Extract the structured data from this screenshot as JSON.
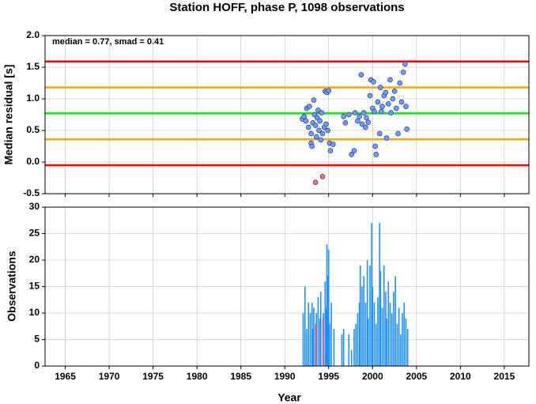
{
  "chart_data": [
    {
      "type": "scatter",
      "title": "Station HOFF, phase P, 1098 observations",
      "y_label": "Median residual [s]",
      "annotation": "median = 0.77, smad = 0.41",
      "xlim": [
        1962.7,
        2017.8
      ],
      "xticks": [
        1965,
        1970,
        1975,
        1980,
        1985,
        1990,
        1995,
        2000,
        2005,
        2010,
        2015
      ],
      "ylim": [
        -0.5,
        2.0
      ],
      "yticks": [
        -0.5,
        {
          "value": 0,
          "label": "0.0"
        },
        0.5,
        {
          "value": 1,
          "label": "1.0"
        },
        1.5,
        {
          "value": 2,
          "label": "2.0"
        }
      ],
      "grid": true,
      "reference_lines": [
        {
          "value": 1.59,
          "color": "#ff0000"
        },
        {
          "value": 1.18,
          "color": "#ffa500"
        },
        {
          "value": 0.77,
          "color": "#00ee00"
        },
        {
          "value": 0.36,
          "color": "#ffa500"
        },
        {
          "value": -0.05,
          "color": "#ff0000"
        }
      ],
      "series": [
        {
          "color": "#6f9cf0",
          "x": [
            1992.0,
            1992.2,
            1992.4,
            1992.5,
            1992.7,
            1992.8,
            1993.0,
            1993.0,
            1993.1,
            1993.2,
            1993.3,
            1993.4,
            1993.5,
            1993.6,
            1993.7,
            1993.8,
            1993.9,
            1994.0,
            1994.1,
            1994.2,
            1994.3,
            1994.5,
            1994.6,
            1994.7,
            1994.8,
            1994.9,
            1995.0,
            1995.1,
            1995.2,
            1995.5,
            1996.7,
            1996.9,
            1997.3,
            1997.6,
            1997.9,
            1998.0,
            1998.3,
            1998.5,
            1998.7,
            1998.8,
            1999.0,
            1999.2,
            1999.3,
            1999.5,
            1999.7,
            1999.8,
            2000.0,
            2000.1,
            2000.2,
            2000.3,
            2000.4,
            2000.6,
            2000.8,
            2000.9,
            2001.0,
            2001.1,
            2001.3,
            2001.5,
            2001.6,
            2001.8,
            2002.0,
            2002.1,
            2002.3,
            2002.5,
            2002.7,
            2002.9,
            2003.1,
            2003.3,
            2003.5,
            2003.7,
            2003.8,
            2003.9
          ],
          "values": [
            0.68,
            0.72,
            0.65,
            0.85,
            0.55,
            0.88,
            0.3,
            0.45,
            0.25,
            0.62,
            0.98,
            0.75,
            0.58,
            0.4,
            0.7,
            0.82,
            0.5,
            0.65,
            0.35,
            0.78,
            0.45,
            0.55,
            1.12,
            0.6,
            1.1,
            0.5,
            1.13,
            0.3,
            0.18,
            0.28,
            0.72,
            0.62,
            0.75,
            0.12,
            0.18,
            0.78,
            0.65,
            0.72,
            1.38,
            0.6,
            0.78,
            0.55,
            0.7,
            0.63,
            1.05,
            1.3,
            0.85,
            1.27,
            0.8,
            0.25,
            0.12,
            0.95,
            0.45,
            1.18,
            0.8,
            0.88,
            1.05,
            1.1,
            0.38,
            0.92,
            1.3,
            0.78,
            1.0,
            1.12,
            0.85,
            0.45,
            1.25,
            0.95,
            1.42,
            1.55,
            0.88,
            0.52
          ]
        },
        {
          "color": "#ff6a6a",
          "x": [
            1993.5,
            1994.3
          ],
          "values": [
            -0.32,
            -0.23
          ]
        }
      ]
    },
    {
      "type": "bar",
      "y_label": "Observations",
      "x_label": "Year",
      "xlim": [
        1962.7,
        2017.8
      ],
      "xticks": [
        1965,
        1970,
        1975,
        1980,
        1985,
        1990,
        1995,
        2000,
        2005,
        2010,
        2015
      ],
      "ylim": [
        0,
        30
      ],
      "yticks": [
        0,
        5,
        10,
        15,
        20,
        25,
        30
      ],
      "grid": true,
      "series": [
        {
          "color": "#1e90ff",
          "x": [
            1992.1,
            1992.3,
            1992.5,
            1992.7,
            1992.9,
            1993.1,
            1993.2,
            1993.3,
            1993.5,
            1993.6,
            1993.8,
            1994.0,
            1994.1,
            1994.4,
            1994.6,
            1994.7,
            1994.8,
            1994.9,
            1995.0,
            1995.1,
            1995.3,
            1995.6,
            1996.5,
            1996.7,
            1997.3,
            1997.6,
            1997.9,
            1998.1,
            1998.3,
            1998.5,
            1998.6,
            1998.8,
            1999.0,
            1999.2,
            1999.4,
            1999.5,
            1999.7,
            1999.9,
            2000.0,
            2000.2,
            2000.4,
            2000.6,
            2000.8,
            2000.9,
            2001.1,
            2001.3,
            2001.5,
            2001.6,
            2001.8,
            2002.0,
            2002.2,
            2002.4,
            2002.6,
            2002.8,
            2003.0,
            2003.2,
            2003.4,
            2003.6,
            2003.8,
            2004.0
          ],
          "values": [
            10,
            15,
            7,
            12,
            10,
            12,
            7,
            11,
            8,
            10,
            13,
            9,
            14,
            10,
            16,
            11,
            23,
            17,
            22,
            8,
            12,
            7,
            6,
            7,
            6,
            3,
            7,
            8,
            10,
            12,
            19,
            15,
            17,
            12,
            20,
            9,
            19,
            27,
            15,
            12,
            8,
            13,
            27,
            18,
            11,
            19,
            14,
            9,
            16,
            12,
            10,
            14,
            17,
            8,
            11,
            6,
            10,
            12,
            9,
            7
          ]
        },
        {
          "color": "#ff5050",
          "x": [
            1993.55,
            1994.35
          ],
          "values": [
            8,
            9
          ]
        }
      ]
    }
  ]
}
